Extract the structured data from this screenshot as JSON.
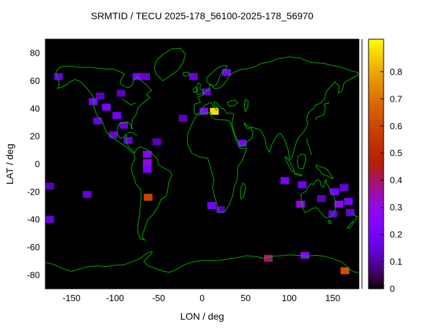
{
  "chart_data": {
    "type": "heatmap",
    "title": "SRMTID / TECU 2025-178_56100-2025-178_56970",
    "xlabel": "LON / deg",
    "ylabel": "LAT / deg",
    "xlim": [
      -180,
      180
    ],
    "ylim": [
      -90,
      90
    ],
    "xticks": [
      -150,
      -100,
      -50,
      0,
      50,
      100,
      150
    ],
    "yticks": [
      -80,
      -60,
      -40,
      -20,
      0,
      20,
      40,
      60,
      80
    ],
    "grid": false,
    "plot_background": "#000000",
    "coastline_color": "#00b000",
    "text_color": "#000000",
    "colorbar": {
      "position": "right",
      "range": [
        0,
        0.92
      ],
      "ticks": [
        0,
        0.1,
        0.2,
        0.3,
        0.4,
        0.5,
        0.6,
        0.7,
        0.8
      ],
      "palette": "gnuplot pm3d black-violet-orange-yellow"
    },
    "cell_size_deg": [
      10,
      5
    ],
    "cells": [
      {
        "lon": -165,
        "lat": 63,
        "v": 0.15
      },
      {
        "lon": -75,
        "lat": 63,
        "v": 0.2
      },
      {
        "lon": -65,
        "lat": 63,
        "v": 0.15
      },
      {
        "lon": -10,
        "lat": 63,
        "v": 0.15
      },
      {
        "lon": 28,
        "lat": 66,
        "v": 0.2
      },
      {
        "lon": -125,
        "lat": 45,
        "v": 0.2
      },
      {
        "lon": -117,
        "lat": 49,
        "v": 0.12
      },
      {
        "lon": -110,
        "lat": 41,
        "v": 0.22
      },
      {
        "lon": -93,
        "lat": 51,
        "v": 0.12
      },
      {
        "lon": -120,
        "lat": 31,
        "v": 0.15
      },
      {
        "lon": -98,
        "lat": 35,
        "v": 0.18
      },
      {
        "lon": -90,
        "lat": 28,
        "v": 0.15
      },
      {
        "lon": -102,
        "lat": 21,
        "v": 0.15
      },
      {
        "lon": -85,
        "lat": 17,
        "v": 0.15
      },
      {
        "lon": -52,
        "lat": 16,
        "v": 0.12
      },
      {
        "lon": -63,
        "lat": 7,
        "v": 0.25
      },
      {
        "lon": -63,
        "lat": 1,
        "v": 0.3
      },
      {
        "lon": -63,
        "lat": -4,
        "v": 0.2
      },
      {
        "lon": -62,
        "lat": -24,
        "v": 0.58
      },
      {
        "lon": -132,
        "lat": -22,
        "v": 0.15
      },
      {
        "lon": -175,
        "lat": -16,
        "v": 0.12
      },
      {
        "lon": -175,
        "lat": -40,
        "v": 0.15
      },
      {
        "lon": 2,
        "lat": 38,
        "v": 0.25
      },
      {
        "lon": 14,
        "lat": 38,
        "v": 0.88
      },
      {
        "lon": 5,
        "lat": 52,
        "v": 0.15
      },
      {
        "lon": -22,
        "lat": 33,
        "v": 0.12
      },
      {
        "lon": 46,
        "lat": 15,
        "v": 0.2
      },
      {
        "lon": 11,
        "lat": -30,
        "v": 0.2
      },
      {
        "lon": 21,
        "lat": -33,
        "v": 0.12
      },
      {
        "lon": 95,
        "lat": -12,
        "v": 0.2
      },
      {
        "lon": 115,
        "lat": -15,
        "v": 0.18
      },
      {
        "lon": 113,
        "lat": -29,
        "v": 0.3
      },
      {
        "lon": 137,
        "lat": -25,
        "v": 0.12
      },
      {
        "lon": 152,
        "lat": -20,
        "v": 0.2
      },
      {
        "lon": 163,
        "lat": -17,
        "v": 0.15
      },
      {
        "lon": 157,
        "lat": -29,
        "v": 0.28
      },
      {
        "lon": 168,
        "lat": -27,
        "v": 0.2
      },
      {
        "lon": 150,
        "lat": -36,
        "v": 0.15
      },
      {
        "lon": 170,
        "lat": -35,
        "v": 0.15
      },
      {
        "lon": 76,
        "lat": -68,
        "v": 0.4
      },
      {
        "lon": 118,
        "lat": -66,
        "v": 0.25
      },
      {
        "lon": 164,
        "lat": -77,
        "v": 0.62
      }
    ]
  }
}
